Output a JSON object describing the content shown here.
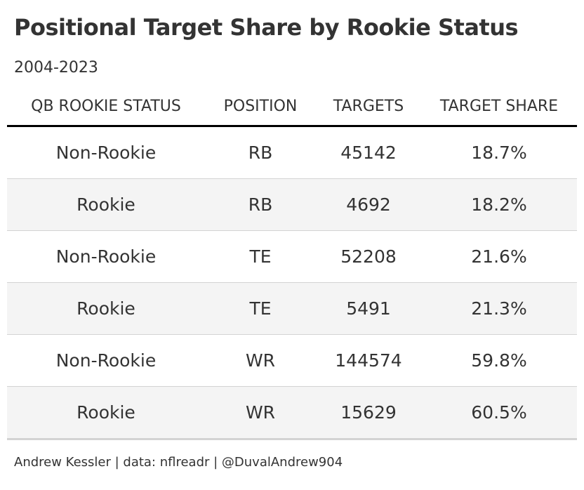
{
  "chart_data": {
    "type": "table",
    "title": "Positional Target Share by Rookie Status",
    "subtitle": "2004-2023",
    "columns": [
      "QB ROOKIE STATUS",
      "POSITION",
      "TARGETS",
      "TARGET SHARE"
    ],
    "rows": [
      [
        "Non-Rookie",
        "RB",
        "45142",
        "18.7%"
      ],
      [
        "Rookie",
        "RB",
        "4692",
        "18.2%"
      ],
      [
        "Non-Rookie",
        "TE",
        "52208",
        "21.6%"
      ],
      [
        "Rookie",
        "TE",
        "5491",
        "21.3%"
      ],
      [
        "Non-Rookie",
        "WR",
        "144574",
        "59.8%"
      ],
      [
        "Rookie",
        "WR",
        "15629",
        "60.5%"
      ]
    ],
    "source": "Andrew Kessler | data: nflreadr | @DuvalAndrew904"
  }
}
